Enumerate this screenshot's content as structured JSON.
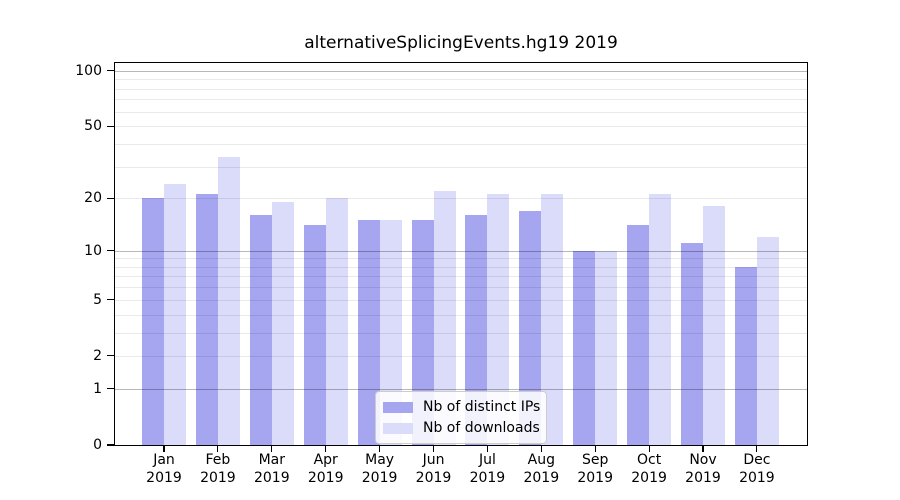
{
  "title": "alternativeSplicingEvents.hg19 2019",
  "chart_data": {
    "type": "bar",
    "title": "alternativeSplicingEvents.hg19 2019",
    "categories": [
      "Jan",
      "Feb",
      "Mar",
      "Apr",
      "May",
      "Jun",
      "Jul",
      "Aug",
      "Sep",
      "Oct",
      "Nov",
      "Dec"
    ],
    "year_label": "2019",
    "series": [
      {
        "name": "Nb of distinct IPs",
        "color": "#a5a5f0",
        "values": [
          20,
          21,
          16,
          14,
          15,
          15,
          16,
          17,
          10,
          14,
          11,
          8
        ]
      },
      {
        "name": "Nb of downloads",
        "color": "#dbdbfa",
        "values": [
          24,
          34,
          19,
          20,
          15,
          22,
          21,
          21,
          10,
          21,
          18,
          12
        ]
      }
    ],
    "xlabel": "",
    "ylabel": "",
    "yscale": "log1p",
    "ylim": [
      0,
      110
    ],
    "ytick_values": [
      100,
      50,
      20,
      10,
      5,
      2,
      1,
      0
    ],
    "major_gridlines": [
      1,
      10,
      100
    ],
    "minor_gridlines": [
      2,
      3,
      4,
      5,
      6,
      7,
      8,
      9,
      20,
      30,
      40,
      50,
      60,
      70,
      80,
      90
    ],
    "grid": true,
    "legend_position": "lower center"
  },
  "colors": {
    "bar_distinct_ips": "#a5a5f0",
    "bar_downloads": "#dbdbfa",
    "axis_frame": "#000000",
    "grid_major": "#b3b3b3",
    "grid_minor": "#e8e8e8",
    "legend_border": "#cccccc",
    "background": "#ffffff"
  }
}
